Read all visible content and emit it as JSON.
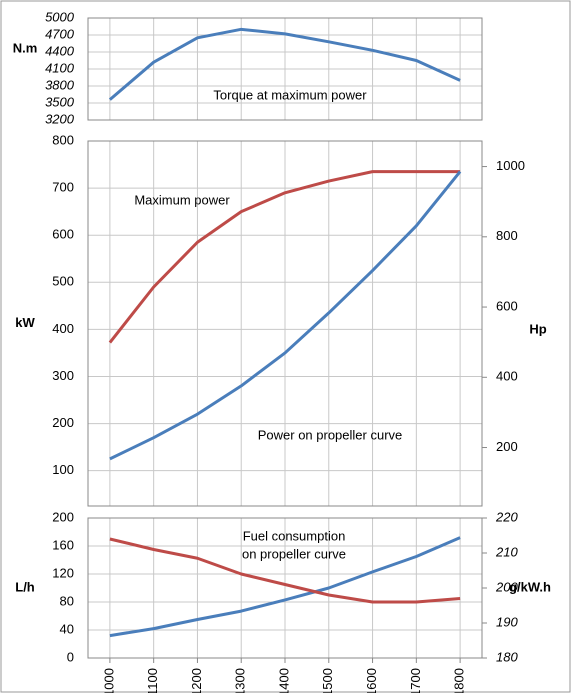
{
  "chart_data": [
    {
      "type": "line",
      "ylabel": "N.m",
      "x": [
        1000,
        1100,
        1200,
        1300,
        1400,
        1500,
        1600,
        1700,
        1800
      ],
      "xlim": [
        950,
        1850
      ],
      "ylim": [
        3200,
        5000
      ],
      "yticks": [
        3200,
        3500,
        3800,
        4100,
        4400,
        4700,
        5000
      ],
      "series": [
        {
          "name": "Torque at maximum power",
          "color": "#4a7ebb",
          "values": [
            3560,
            4220,
            4650,
            4800,
            4720,
            4580,
            4430,
            4250,
            3900
          ]
        }
      ]
    },
    {
      "type": "line",
      "ylabel": "kW",
      "y2label": "Hp",
      "x": [
        1000,
        1100,
        1200,
        1300,
        1400,
        1500,
        1600,
        1700,
        1800
      ],
      "xlim": [
        950,
        1850
      ],
      "ylim": [
        25,
        800
      ],
      "yticks": [
        100,
        200,
        300,
        400,
        500,
        600,
        700,
        800
      ],
      "y2lim": [
        33.5,
        1072.8
      ],
      "y2ticks": [
        200,
        400,
        600,
        800,
        1000
      ],
      "y2color": "#000000",
      "series": [
        {
          "name": "Maximum power",
          "color": "#be4b48",
          "values": [
            372,
            490,
            585,
            650,
            690,
            715,
            735,
            735,
            735
          ]
        },
        {
          "name": "Power on propeller curve",
          "color": "#4a7ebb",
          "values": [
            125,
            170,
            220,
            280,
            350,
            435,
            525,
            620,
            735
          ]
        }
      ]
    },
    {
      "type": "line",
      "ylabel": "L/h",
      "y2label": "g/kW.h",
      "x": [
        1000,
        1100,
        1200,
        1300,
        1400,
        1500,
        1600,
        1700,
        1800
      ],
      "xlim": [
        950,
        1850
      ],
      "xticks": [
        1000,
        1100,
        1200,
        1300,
        1400,
        1500,
        1600,
        1700,
        1800
      ],
      "ylim": [
        0,
        200
      ],
      "yticks": [
        0,
        40,
        80,
        120,
        160,
        200
      ],
      "y2lim": [
        180,
        220
      ],
      "y2ticks": [
        180,
        190,
        200,
        210,
        220
      ],
      "y2color": "#e02020",
      "annotations": [
        "Fuel consumption",
        "on propeller curve"
      ],
      "series": [
        {
          "color": "#4a7ebb",
          "values": [
            32,
            42,
            55,
            67,
            83,
            100,
            123,
            145,
            172
          ]
        },
        {
          "color": "#be4b48",
          "axis": "y2",
          "values": [
            214,
            211,
            208.5,
            204,
            201,
            198,
            196,
            196,
            197
          ]
        }
      ]
    }
  ]
}
